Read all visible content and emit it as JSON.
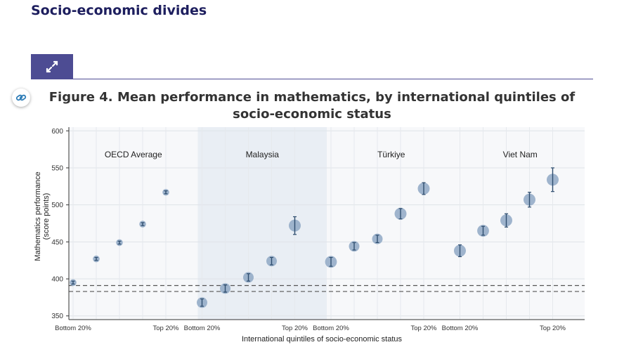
{
  "section": {
    "title": "Socio-economic divides"
  },
  "figure": {
    "label": "Figure 4.",
    "title": "Mean performance in mathematics, by international quintiles of socio-economic status"
  },
  "icons": {
    "expand": "expand-arrows-icon",
    "link": "link-chain-icon"
  },
  "colors": {
    "accent": "#4d4c93",
    "title": "#1d1e5e",
    "marker": "#8fa8c4",
    "errorbar": "#2e4d6e",
    "panel_shade": "#e9eef4"
  },
  "chart_data": {
    "type": "scatter",
    "xlabel": "International quintiles of socio-economic status",
    "ylabel": "Mathematics performance\n(score points)",
    "ylim": [
      345,
      605
    ],
    "yticks": [
      350,
      400,
      450,
      500,
      550,
      600
    ],
    "grid": true,
    "panels": [
      {
        "name": "OECD Average",
        "x_tick_labels": [
          "Bottom 20%",
          "Top 20%"
        ],
        "x": [
          "Bottom 20%",
          "Q2",
          "Q3",
          "Q4",
          "Top 20%"
        ],
        "values": [
          395,
          427,
          449,
          474,
          517
        ],
        "err": [
          2,
          2,
          2,
          2,
          2
        ]
      },
      {
        "name": "Malaysia",
        "shaded": true,
        "x_tick_labels": [
          "Bottom 20%",
          "Top 20%"
        ],
        "x": [
          "Bottom 20%",
          "Q2",
          "Q3",
          "Q4",
          "Top 20%"
        ],
        "values": [
          368,
          387,
          402,
          424,
          472
        ],
        "err": [
          5,
          5,
          5,
          5,
          12
        ]
      },
      {
        "name": "Türkiye",
        "x_tick_labels": [
          "Bottom 20%",
          "Top 20%"
        ],
        "x": [
          "Bottom 20%",
          "Q2",
          "Q3",
          "Q4",
          "Top 20%"
        ],
        "values": [
          423,
          444,
          454,
          488,
          522
        ],
        "err": [
          6,
          5,
          5,
          7,
          8
        ]
      },
      {
        "name": "Viet Nam",
        "x_tick_labels": [
          "Bottom 20%",
          "Top 20%"
        ],
        "x": [
          "Bottom 20%",
          "Q2",
          "Q3",
          "Q4",
          "Top 20%"
        ],
        "values": [
          438,
          465,
          479,
          507,
          534
        ],
        "err": [
          8,
          6,
          9,
          10,
          16
        ]
      }
    ],
    "reference_lines": [
      {
        "style": "dashed",
        "value": 391
      },
      {
        "style": "dashed",
        "value": 383
      }
    ]
  }
}
